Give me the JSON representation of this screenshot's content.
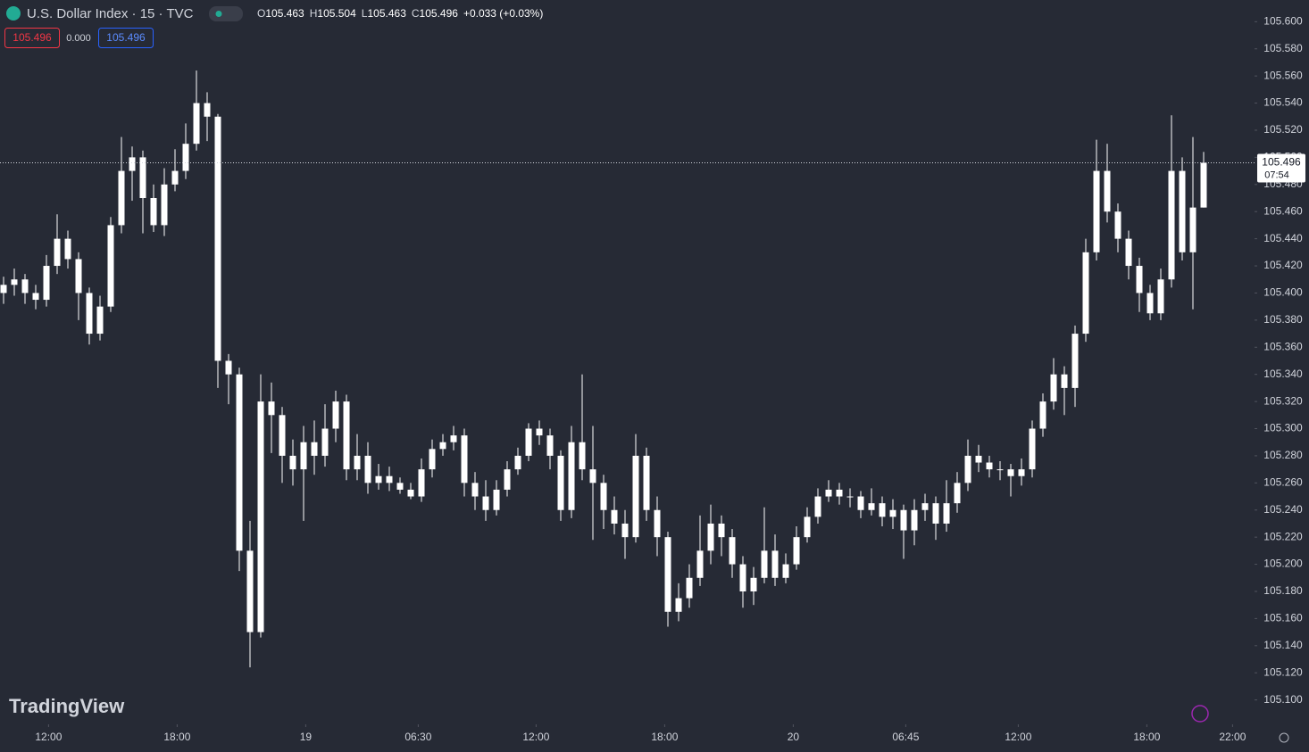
{
  "header": {
    "symbol": "U.S. Dollar Index · 15 · TVC",
    "ohlc": [
      {
        "label": "O",
        "value": "105.463"
      },
      {
        "label": "H",
        "value": "105.504"
      },
      {
        "label": "L",
        "value": "105.463"
      },
      {
        "label": "C",
        "value": "105.496"
      }
    ],
    "change": "+0.033 (+0.03%)",
    "bid": "105.496",
    "spread": "0.000",
    "ask": "105.496",
    "countdown": "07:54",
    "watermark": "TradingView"
  },
  "chart_data": {
    "type": "candlestick",
    "up_color": "#ffffff",
    "down_color": "#ffffff",
    "background": "#262a35",
    "last_price": 105.496,
    "xlim": [
      -0.333,
      116.75
    ],
    "ylim": [
      105.082,
      105.616
    ],
    "xticks": [
      {
        "value": 4.2,
        "label": "12:00"
      },
      {
        "value": 16.2,
        "label": "18:00"
      },
      {
        "value": 28.2,
        "label": "19"
      },
      {
        "value": 38.7,
        "label": "06:30"
      },
      {
        "value": 49.7,
        "label": "12:00"
      },
      {
        "value": 61.7,
        "label": "18:00"
      },
      {
        "value": 73.7,
        "label": "20"
      },
      {
        "value": 84.2,
        "label": "06:45"
      },
      {
        "value": 94.7,
        "label": "12:00"
      },
      {
        "value": 106.7,
        "label": "18:00"
      },
      {
        "value": 114.7,
        "label": "22:00"
      }
    ],
    "yticks": [
      {
        "value": 105.1,
        "label": "105.100"
      },
      {
        "value": 105.12,
        "label": "105.120"
      },
      {
        "value": 105.14,
        "label": "105.140"
      },
      {
        "value": 105.16,
        "label": "105.160"
      },
      {
        "value": 105.18,
        "label": "105.180"
      },
      {
        "value": 105.2,
        "label": "105.200"
      },
      {
        "value": 105.22,
        "label": "105.220"
      },
      {
        "value": 105.24,
        "label": "105.240"
      },
      {
        "value": 105.26,
        "label": "105.260"
      },
      {
        "value": 105.28,
        "label": "105.280"
      },
      {
        "value": 105.3,
        "label": "105.300"
      },
      {
        "value": 105.32,
        "label": "105.320"
      },
      {
        "value": 105.34,
        "label": "105.340"
      },
      {
        "value": 105.36,
        "label": "105.360"
      },
      {
        "value": 105.38,
        "label": "105.380"
      },
      {
        "value": 105.4,
        "label": "105.400"
      },
      {
        "value": 105.42,
        "label": "105.420"
      },
      {
        "value": 105.44,
        "label": "105.440"
      },
      {
        "value": 105.46,
        "label": "105.460"
      },
      {
        "value": 105.48,
        "label": "105.480"
      },
      {
        "value": 105.5,
        "label": "105.500"
      },
      {
        "value": 105.52,
        "label": "105.520"
      },
      {
        "value": 105.54,
        "label": "105.540"
      },
      {
        "value": 105.56,
        "label": "105.560"
      },
      {
        "value": 105.58,
        "label": "105.580"
      },
      {
        "value": 105.6,
        "label": "105.600"
      }
    ],
    "candles": [
      [
        105.4,
        105.412,
        105.392,
        105.406
      ],
      [
        105.406,
        105.418,
        105.398,
        105.41
      ],
      [
        105.41,
        105.414,
        105.392,
        105.4
      ],
      [
        105.4,
        105.406,
        105.388,
        105.395
      ],
      [
        105.395,
        105.428,
        105.39,
        105.42
      ],
      [
        105.42,
        105.458,
        105.414,
        105.44
      ],
      [
        105.44,
        105.446,
        105.418,
        105.425
      ],
      [
        105.425,
        105.43,
        105.38,
        105.4
      ],
      [
        105.4,
        105.404,
        105.362,
        105.37
      ],
      [
        105.37,
        105.398,
        105.365,
        105.39
      ],
      [
        105.39,
        105.456,
        105.386,
        105.45
      ],
      [
        105.45,
        105.515,
        105.444,
        105.49
      ],
      [
        105.49,
        105.508,
        105.468,
        105.5
      ],
      [
        105.5,
        105.505,
        105.444,
        105.47
      ],
      [
        105.47,
        105.48,
        105.445,
        105.45
      ],
      [
        105.45,
        105.492,
        105.442,
        105.48
      ],
      [
        105.48,
        105.506,
        105.475,
        105.49
      ],
      [
        105.49,
        105.525,
        105.484,
        105.51
      ],
      [
        105.51,
        105.564,
        105.505,
        105.54
      ],
      [
        105.54,
        105.548,
        105.512,
        105.53
      ],
      [
        105.53,
        105.532,
        105.33,
        105.35
      ],
      [
        105.35,
        105.355,
        105.318,
        105.34
      ],
      [
        105.34,
        105.345,
        105.195,
        105.21
      ],
      [
        105.21,
        105.232,
        105.124,
        105.15
      ],
      [
        105.15,
        105.34,
        105.146,
        105.32
      ],
      [
        105.32,
        105.334,
        105.282,
        105.31
      ],
      [
        105.31,
        105.316,
        105.26,
        105.28
      ],
      [
        105.28,
        105.292,
        105.258,
        105.27
      ],
      [
        105.27,
        105.302,
        105.232,
        105.29
      ],
      [
        105.29,
        105.306,
        105.266,
        105.28
      ],
      [
        105.28,
        105.318,
        105.272,
        105.3
      ],
      [
        105.3,
        105.328,
        105.29,
        105.32
      ],
      [
        105.32,
        105.325,
        105.262,
        105.27
      ],
      [
        105.27,
        105.296,
        105.262,
        105.28
      ],
      [
        105.28,
        105.29,
        105.252,
        105.26
      ],
      [
        105.26,
        105.274,
        105.255,
        105.265
      ],
      [
        105.265,
        105.272,
        105.254,
        105.26
      ],
      [
        105.26,
        105.264,
        105.252,
        105.255
      ],
      [
        105.255,
        105.26,
        105.248,
        105.25
      ],
      [
        105.25,
        105.278,
        105.246,
        105.27
      ],
      [
        105.27,
        105.292,
        105.264,
        105.285
      ],
      [
        105.285,
        105.296,
        105.28,
        105.29
      ],
      [
        105.29,
        105.302,
        105.284,
        105.295
      ],
      [
        105.295,
        105.3,
        105.25,
        105.26
      ],
      [
        105.26,
        105.268,
        105.24,
        105.25
      ],
      [
        105.25,
        105.262,
        105.232,
        105.24
      ],
      [
        105.24,
        105.262,
        105.236,
        105.255
      ],
      [
        105.255,
        105.276,
        105.25,
        105.27
      ],
      [
        105.27,
        105.286,
        105.266,
        105.28
      ],
      [
        105.28,
        105.304,
        105.276,
        105.3
      ],
      [
        105.3,
        105.306,
        105.288,
        105.295
      ],
      [
        105.295,
        105.3,
        105.27,
        105.28
      ],
      [
        105.28,
        105.284,
        105.232,
        105.24
      ],
      [
        105.24,
        105.302,
        105.234,
        105.29
      ],
      [
        105.29,
        105.34,
        105.262,
        105.27
      ],
      [
        105.27,
        105.302,
        105.218,
        105.26
      ],
      [
        105.26,
        105.266,
        105.226,
        105.24
      ],
      [
        105.24,
        105.25,
        105.222,
        105.23
      ],
      [
        105.23,
        105.24,
        105.204,
        105.22
      ],
      [
        105.22,
        105.296,
        105.216,
        105.28
      ],
      [
        105.28,
        105.286,
        105.232,
        105.24
      ],
      [
        105.24,
        105.25,
        105.206,
        105.22
      ],
      [
        105.22,
        105.224,
        105.154,
        105.165
      ],
      [
        105.165,
        105.186,
        105.158,
        105.175
      ],
      [
        105.175,
        105.2,
        105.168,
        105.19
      ],
      [
        105.19,
        105.236,
        105.184,
        105.21
      ],
      [
        105.21,
        105.244,
        105.2,
        105.23
      ],
      [
        105.23,
        105.236,
        105.206,
        105.22
      ],
      [
        105.22,
        105.226,
        105.19,
        105.2
      ],
      [
        105.2,
        105.206,
        105.168,
        105.18
      ],
      [
        105.18,
        105.198,
        105.17,
        105.19
      ],
      [
        105.19,
        105.242,
        105.186,
        105.21
      ],
      [
        105.21,
        105.222,
        105.184,
        105.19
      ],
      [
        105.19,
        105.208,
        105.186,
        105.2
      ],
      [
        105.2,
        105.228,
        105.196,
        105.22
      ],
      [
        105.22,
        105.242,
        105.216,
        105.235
      ],
      [
        105.235,
        105.256,
        105.23,
        105.25
      ],
      [
        105.25,
        105.262,
        105.246,
        105.255
      ],
      [
        105.255,
        105.26,
        105.244,
        105.25
      ],
      [
        105.25,
        105.256,
        105.242,
        105.25
      ],
      [
        105.25,
        105.254,
        105.234,
        105.24
      ],
      [
        105.24,
        105.256,
        105.236,
        105.245
      ],
      [
        105.245,
        105.25,
        105.228,
        105.235
      ],
      [
        105.235,
        105.248,
        105.226,
        105.24
      ],
      [
        105.24,
        105.244,
        105.204,
        105.225
      ],
      [
        105.225,
        105.248,
        105.214,
        105.24
      ],
      [
        105.24,
        105.252,
        105.232,
        105.245
      ],
      [
        105.245,
        105.25,
        105.218,
        105.23
      ],
      [
        105.23,
        105.262,
        105.224,
        105.245
      ],
      [
        105.245,
        105.268,
        105.238,
        105.26
      ],
      [
        105.26,
        105.292,
        105.254,
        105.28
      ],
      [
        105.28,
        105.288,
        105.268,
        105.275
      ],
      [
        105.275,
        105.28,
        105.264,
        105.27
      ],
      [
        105.27,
        105.276,
        105.262,
        105.27
      ],
      [
        105.27,
        105.274,
        105.25,
        105.265
      ],
      [
        105.265,
        105.278,
        105.258,
        105.27
      ],
      [
        105.27,
        105.306,
        105.264,
        105.3
      ],
      [
        105.3,
        105.326,
        105.294,
        105.32
      ],
      [
        105.32,
        105.352,
        105.314,
        105.34
      ],
      [
        105.34,
        105.346,
        105.31,
        105.33
      ],
      [
        105.33,
        105.376,
        105.316,
        105.37
      ],
      [
        105.37,
        105.44,
        105.364,
        105.43
      ],
      [
        105.43,
        105.513,
        105.424,
        105.49
      ],
      [
        105.49,
        105.51,
        105.452,
        105.46
      ],
      [
        105.46,
        105.466,
        105.43,
        105.44
      ],
      [
        105.44,
        105.446,
        105.41,
        105.42
      ],
      [
        105.42,
        105.426,
        105.386,
        105.4
      ],
      [
        105.4,
        105.406,
        105.38,
        105.385
      ],
      [
        105.385,
        105.418,
        105.38,
        105.41
      ],
      [
        105.41,
        105.531,
        105.404,
        105.49
      ],
      [
        105.49,
        105.5,
        105.424,
        105.43
      ],
      [
        105.43,
        105.515,
        105.388,
        105.463
      ],
      [
        105.463,
        105.504,
        105.463,
        105.496
      ]
    ]
  }
}
